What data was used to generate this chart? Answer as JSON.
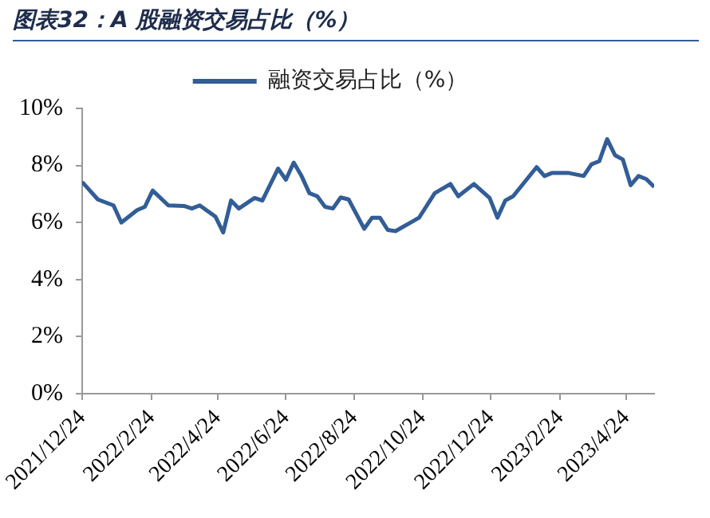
{
  "chart_data": {
    "type": "line",
    "title": "图表32：A 股融资交易占比（%）",
    "x": [
      "2021-12-24",
      "2022-01-07",
      "2022-01-21",
      "2022-01-28",
      "2022-02-11",
      "2022-02-18",
      "2022-02-25",
      "2022-03-11",
      "2022-03-25",
      "2022-04-01",
      "2022-04-08",
      "2022-04-22",
      "2022-04-29",
      "2022-05-06",
      "2022-05-13",
      "2022-05-27",
      "2022-06-03",
      "2022-06-17",
      "2022-06-24",
      "2022-07-01",
      "2022-07-08",
      "2022-07-15",
      "2022-07-22",
      "2022-07-29",
      "2022-08-05",
      "2022-08-12",
      "2022-08-19",
      "2022-09-02",
      "2022-09-09",
      "2022-09-16",
      "2022-09-23",
      "2022-09-30",
      "2022-10-21",
      "2022-10-28",
      "2022-11-04",
      "2022-11-18",
      "2022-11-25",
      "2022-12-09",
      "2022-12-23",
      "2022-12-30",
      "2023-01-06",
      "2023-01-13",
      "2023-02-03",
      "2023-02-10",
      "2023-02-17",
      "2023-03-03",
      "2023-03-17",
      "2023-03-24",
      "2023-03-31",
      "2023-04-07",
      "2023-04-14",
      "2023-04-21",
      "2023-04-28",
      "2023-05-05",
      "2023-05-12",
      "2023-05-19"
    ],
    "series": [
      {
        "name": "融资交易占比（%）",
        "color": "#325d97",
        "values": [
          7.42,
          6.81,
          6.6,
          6.0,
          6.43,
          6.55,
          7.12,
          6.6,
          6.58,
          6.49,
          6.6,
          6.21,
          5.65,
          6.77,
          6.49,
          6.86,
          6.77,
          7.89,
          7.5,
          8.1,
          7.63,
          7.03,
          6.92,
          6.55,
          6.49,
          6.88,
          6.81,
          5.78,
          6.17,
          6.17,
          5.74,
          5.7,
          6.17,
          6.6,
          7.03,
          7.35,
          6.92,
          7.35,
          6.86,
          6.17,
          6.77,
          6.92,
          7.94,
          7.63,
          7.74,
          7.74,
          7.63,
          8.04,
          8.15,
          8.92,
          8.36,
          8.21,
          7.31,
          7.63,
          7.52,
          7.25
        ]
      }
    ],
    "xlim": [
      "2021-12-24",
      "2023-05-19"
    ],
    "xticks": [
      {
        "value": "2021-12-24",
        "label": "2021/12/24"
      },
      {
        "value": "2022-02-24",
        "label": "2022/2/24"
      },
      {
        "value": "2022-04-24",
        "label": "2022/4/24"
      },
      {
        "value": "2022-06-24",
        "label": "2022/6/24"
      },
      {
        "value": "2022-08-24",
        "label": "2022/8/24"
      },
      {
        "value": "2022-10-24",
        "label": "2022/10/24"
      },
      {
        "value": "2022-12-24",
        "label": "2022/12/24"
      },
      {
        "value": "2023-02-24",
        "label": "2023/2/24"
      },
      {
        "value": "2023-04-24",
        "label": "2023/4/24"
      }
    ],
    "ylim": [
      0,
      10
    ],
    "yticks": [
      {
        "value": 0,
        "label": "0%"
      },
      {
        "value": 2,
        "label": "2%"
      },
      {
        "value": 4,
        "label": "4%"
      },
      {
        "value": 6,
        "label": "6%"
      },
      {
        "value": 8,
        "label": "8%"
      },
      {
        "value": 10,
        "label": "10%"
      }
    ],
    "grid": false,
    "legend": "top",
    "marker": "none",
    "line_style": "solid"
  }
}
